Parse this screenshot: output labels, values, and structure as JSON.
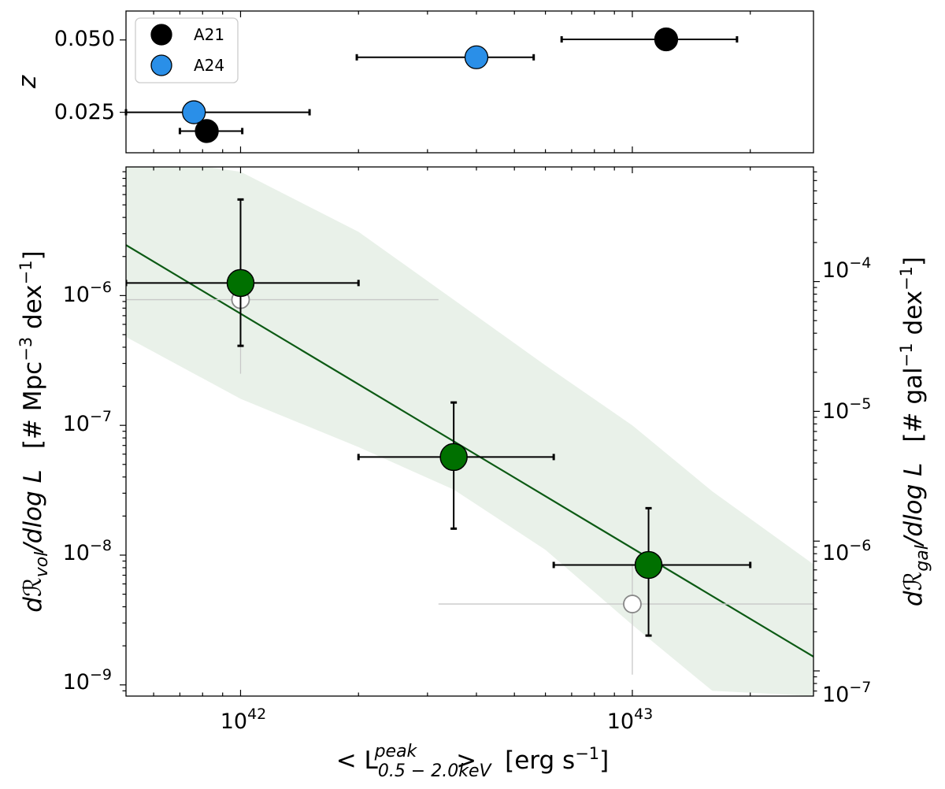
{
  "colors": {
    "a21": "#000000",
    "a24": "#2a8fe8",
    "green": "#007000",
    "fit": "#0c5a14",
    "band": "#e9f1e9",
    "faint": "#888888",
    "faint_err": "#c8c8c8"
  },
  "chart_data": [
    {
      "panel": "top",
      "type": "scatter",
      "xscale": "log",
      "xlim": [
        5.1e+41,
        2.9e+43
      ],
      "ylim": [
        0.011,
        0.06
      ],
      "ylabel": "z",
      "yticks": [
        {
          "value": 0.025,
          "label": "0.025"
        },
        {
          "value": 0.05,
          "label": "0.050"
        }
      ],
      "legend": {
        "position": "top-left",
        "entries": [
          {
            "label": "A21",
            "color": "#000000"
          },
          {
            "label": "A24",
            "color": "#2a8fe8"
          }
        ]
      },
      "series": [
        {
          "name": "A21",
          "color": "#000000",
          "points": [
            {
              "x": 8.2e+41,
              "xlo": 7e+41,
              "xhi": 1.01e+42,
              "y": 0.0185
            },
            {
              "x": 1.22e+43,
              "xlo": 6.6e+42,
              "xhi": 1.85e+43,
              "y": 0.0502
            }
          ]
        },
        {
          "name": "A24",
          "color": "#2a8fe8",
          "points": [
            {
              "x": 7.6e+41,
              "xlo": 5.1e+41,
              "xhi": 1.5e+42,
              "y": 0.025
            },
            {
              "x": 4e+42,
              "xlo": 1.98e+42,
              "xhi": 5.6e+42,
              "y": 0.044
            }
          ]
        }
      ]
    },
    {
      "panel": "bottom",
      "type": "scatter",
      "xscale": "log",
      "yscale": "log",
      "xlim": [
        5.1e+41,
        2.9e+43
      ],
      "ylim": [
        8.2e-10,
        9.8e-06
      ],
      "xlabel": {
        "prefix": "< L",
        "superscript": "peak",
        "subscript": "0.5 − 2.0keV",
        "suffix": " >",
        "units": "[erg s",
        "units_exp": "−1",
        "units_close": "]"
      },
      "ylabel_left": {
        "main": "dℛ",
        "sub": "vol",
        "rest": "/dlog L",
        "units": "[# Mpc",
        "exp1": "−3",
        "units2": " dex",
        "exp2": "−1",
        "close": "]"
      },
      "ylabel_right": {
        "main": "dℛ",
        "sub": "gal",
        "rest": "/dlog L",
        "units": "[# gal",
        "exp1": "−1",
        "units2": " dex",
        "exp2": "−1",
        "close": "]"
      },
      "xticks": [
        {
          "value": 1e+42,
          "base": "10",
          "exp": "42"
        },
        {
          "value": 1e+43,
          "base": "10",
          "exp": "43"
        }
      ],
      "yticks_left": [
        {
          "value": 1e-06,
          "base": "10",
          "exp": "−6"
        },
        {
          "value": 1e-07,
          "base": "10",
          "exp": "−7"
        },
        {
          "value": 1e-08,
          "base": "10",
          "exp": "−8"
        },
        {
          "value": 1e-09,
          "base": "10",
          "exp": "−9"
        }
      ],
      "right_axis": {
        "scale_factor": 78,
        "yticks": [
          {
            "value": 0.0001,
            "base": "10",
            "exp": "−4"
          },
          {
            "value": 1e-05,
            "base": "10",
            "exp": "−5"
          },
          {
            "value": 1e-06,
            "base": "10",
            "exp": "−6"
          },
          {
            "value": 1e-07,
            "base": "10",
            "exp": "−7"
          }
        ]
      },
      "points": [
        {
          "x": 1e+42,
          "xlo": 5.1e+41,
          "xhi": 2e+42,
          "y": 1.25e-06,
          "ylo": 4.1e-07,
          "yhi": 5.5e-06
        },
        {
          "x": 3.5e+42,
          "xlo": 2e+42,
          "xhi": 6.3e+42,
          "y": 5.7e-08,
          "ylo": 1.6e-08,
          "yhi": 1.5e-07
        },
        {
          "x": 1.1e+43,
          "xlo": 6.3e+42,
          "xhi": 2e+43,
          "y": 8.4e-09,
          "ylo": 2.4e-09,
          "yhi": 2.3e-08
        }
      ],
      "faint_points": [
        {
          "x": 1e+42,
          "xlo": 5.1e+41,
          "xhi": 3.2e+42,
          "y": 9.3e-07,
          "ylo": 2.5e-07,
          "yhi": 1.8e-06
        },
        {
          "x": 1e+43,
          "xlo": 3.2e+42,
          "xhi": 2.9e+43,
          "y": 4.2e-09,
          "ylo": 1.2e-09,
          "yhi": 8.4e-09
        }
      ],
      "fit_line": {
        "x": [
          5.1e+41,
          2.9e+43
        ],
        "y": [
          2.45e-06,
          1.65e-09
        ]
      },
      "band": {
        "x": [
          5.1e+41,
          1e+42,
          2e+42,
          3.5e+42,
          6e+42,
          1e+43,
          1.6e+43,
          2.9e+43
        ],
        "upper": [
          1.2e-05,
          9e-06,
          3.1e-06,
          9.3e-07,
          2.9e-07,
          1e-07,
          3.1e-08,
          8.5e-09
        ],
        "lower": [
          4.8e-07,
          1.6e-07,
          6.8e-08,
          3.2e-08,
          1.1e-08,
          2.9e-09,
          9e-10,
          8.2e-10
        ]
      }
    }
  ]
}
